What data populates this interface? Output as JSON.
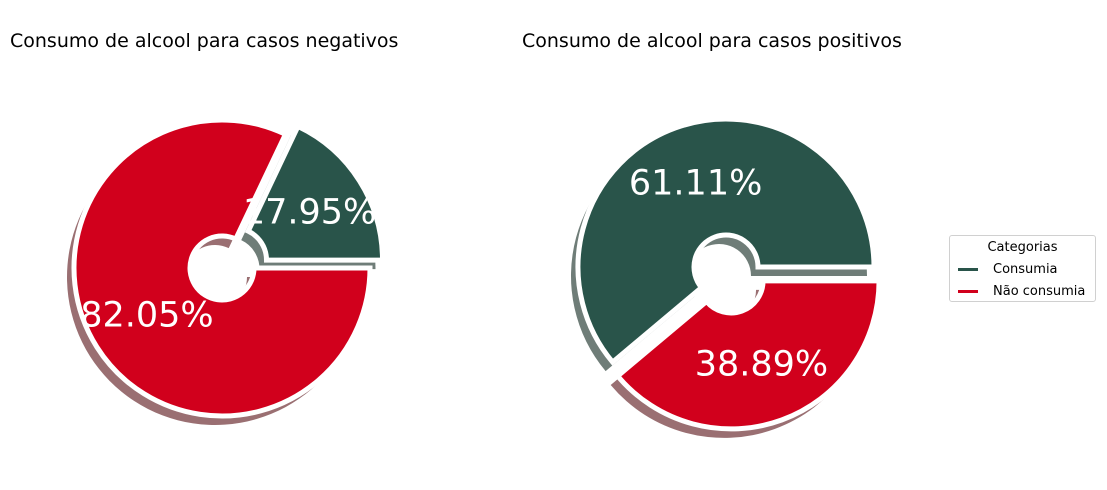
{
  "colors": {
    "consumia": "#29544a",
    "nao_consumia": "#d1001c",
    "shadow_consumia": "#6f7d78",
    "shadow_nao_consumia": "#9a6f72",
    "label": "#ffffff"
  },
  "chart_data": [
    {
      "type": "pie",
      "title": "Consumo de alcool para casos negativos",
      "categories": [
        "Consumia",
        "Não consumia"
      ],
      "values": [
        17.95,
        82.05
      ],
      "labels": [
        "17.95%",
        "82.05%"
      ],
      "start_angle_deg": 0,
      "explode": [
        0.1,
        0
      ],
      "shadow": true
    },
    {
      "type": "pie",
      "title": "Consumo de alcool para casos positivos",
      "categories": [
        "Consumia",
        "Não consumia"
      ],
      "values": [
        61.11,
        38.89
      ],
      "labels": [
        "61.11%",
        "38.89%"
      ],
      "start_angle_deg": 0,
      "explode": [
        0,
        0.1
      ],
      "shadow": true
    }
  ],
  "legend": {
    "title": "Categorias",
    "placement": "right",
    "items": [
      "Consumia",
      "Não consumia"
    ]
  }
}
